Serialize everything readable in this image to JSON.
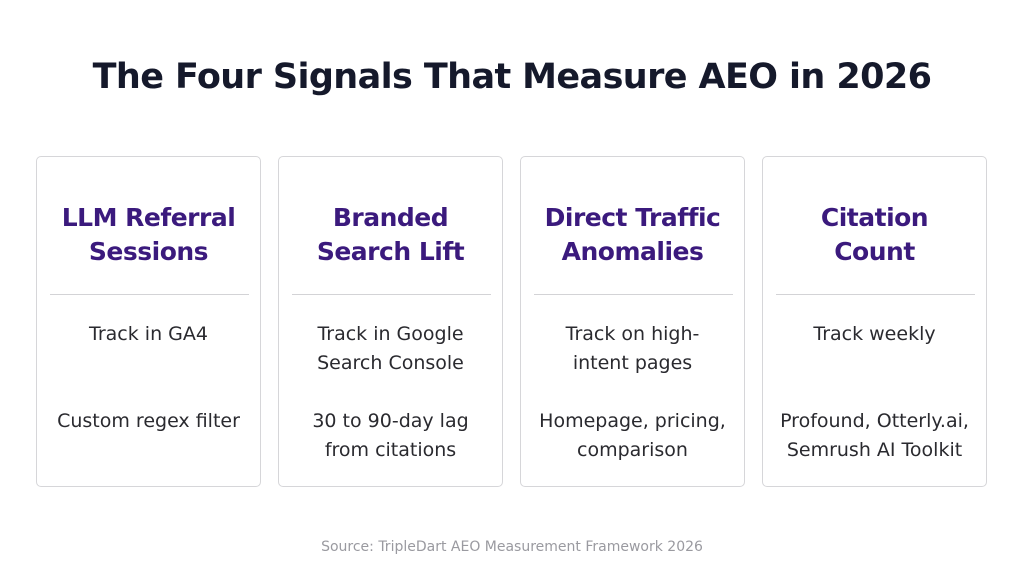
{
  "title": "The Four Signals That Measure AEO in 2026",
  "cards": [
    {
      "title_lines": [
        "LLM Referral",
        "Sessions"
      ],
      "track": [
        "Track in GA4"
      ],
      "detail": [
        "Custom regex filter"
      ]
    },
    {
      "title_lines": [
        "Branded",
        "Search Lift"
      ],
      "track": [
        "Track in Google",
        "Search Console"
      ],
      "detail": [
        "30 to 90-day lag",
        "from citations"
      ]
    },
    {
      "title_lines": [
        "Direct Traffic",
        "Anomalies"
      ],
      "track": [
        "Track on high-",
        "intent pages"
      ],
      "detail": [
        "Homepage, pricing,",
        "comparison"
      ]
    },
    {
      "title_lines": [
        "Citation",
        "Count"
      ],
      "track": [
        "Track weekly"
      ],
      "detail": [
        "Profound, Otterly.ai,",
        "Semrush AI Toolkit"
      ]
    }
  ],
  "source": "Source: TripleDart AEO Measurement Framework 2026",
  "colors": {
    "title": "#15192b",
    "card_title": "#3b1a7d",
    "body_text": "#2a2a2f",
    "border": "#d6d6d9",
    "source": "#9a9aa0"
  }
}
